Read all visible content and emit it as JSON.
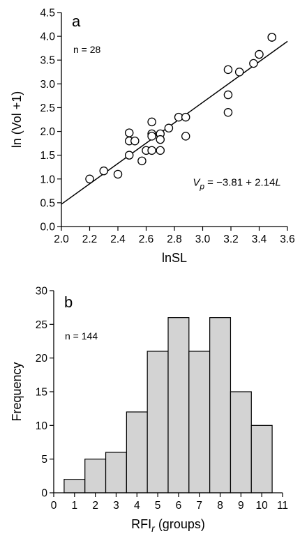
{
  "chart_data": [
    {
      "type": "scatter",
      "panel_label": "a",
      "annotation": "n = 28",
      "xlabel": "lnSL",
      "ylabel": "ln (Vol +1)",
      "xlim": [
        2.0,
        3.6
      ],
      "ylim": [
        0.0,
        4.5
      ],
      "x_ticks": [
        "2.0",
        "2.2",
        "2.4",
        "2.6",
        "2.8",
        "3.0",
        "3.2",
        "3.4",
        "3.6"
      ],
      "y_ticks": [
        "0.0",
        "0.5",
        "1.0",
        "1.5",
        "2.0",
        "2.5",
        "3.0",
        "3.5",
        "4.0",
        "4.5"
      ],
      "points": [
        [
          2.2,
          1.0
        ],
        [
          2.3,
          1.17
        ],
        [
          2.4,
          1.1
        ],
        [
          2.48,
          1.97
        ],
        [
          2.48,
          1.8
        ],
        [
          2.48,
          1.5
        ],
        [
          2.52,
          1.8
        ],
        [
          2.57,
          1.38
        ],
        [
          2.6,
          1.6
        ],
        [
          2.64,
          2.2
        ],
        [
          2.64,
          1.95
        ],
        [
          2.64,
          1.9
        ],
        [
          2.64,
          1.6
        ],
        [
          2.7,
          1.95
        ],
        [
          2.7,
          1.83
        ],
        [
          2.7,
          1.6
        ],
        [
          2.76,
          2.07
        ],
        [
          2.83,
          2.3
        ],
        [
          2.88,
          2.3
        ],
        [
          2.88,
          1.9
        ],
        [
          3.18,
          3.3
        ],
        [
          3.18,
          2.77
        ],
        [
          3.18,
          2.4
        ],
        [
          3.26,
          3.25
        ],
        [
          3.36,
          3.43
        ],
        [
          3.4,
          3.62
        ],
        [
          3.49,
          3.98
        ],
        [
          3.49,
          3.98
        ]
      ],
      "fit": {
        "intercept": -3.81,
        "slope": 2.14,
        "equation": {
          "lhs": "V",
          "lhs_sub": "p",
          "mid": " = −3.81 + 2.14",
          "rhs": "L"
        }
      }
    },
    {
      "type": "bar",
      "panel_label": "b",
      "annotation": "n = 144",
      "xlabel_main": "RFI",
      "xlabel_sub": "r",
      "xlabel_tail": " (groups)",
      "ylabel": "Frequency",
      "xlim": [
        0,
        11
      ],
      "ylim": [
        0,
        30
      ],
      "x_ticks": [
        "0",
        "1",
        "2",
        "3",
        "4",
        "5",
        "6",
        "7",
        "8",
        "9",
        "10",
        "11"
      ],
      "y_ticks": [
        "0",
        "5",
        "10",
        "15",
        "20",
        "25",
        "30"
      ],
      "bin_edges": [
        0.5,
        1.5,
        2.5,
        3.5,
        4.5,
        5.5,
        6.5,
        7.5,
        8.5,
        9.5,
        10.5
      ],
      "values": [
        2,
        5,
        6,
        12,
        21,
        26,
        21,
        26,
        15,
        10
      ]
    }
  ]
}
